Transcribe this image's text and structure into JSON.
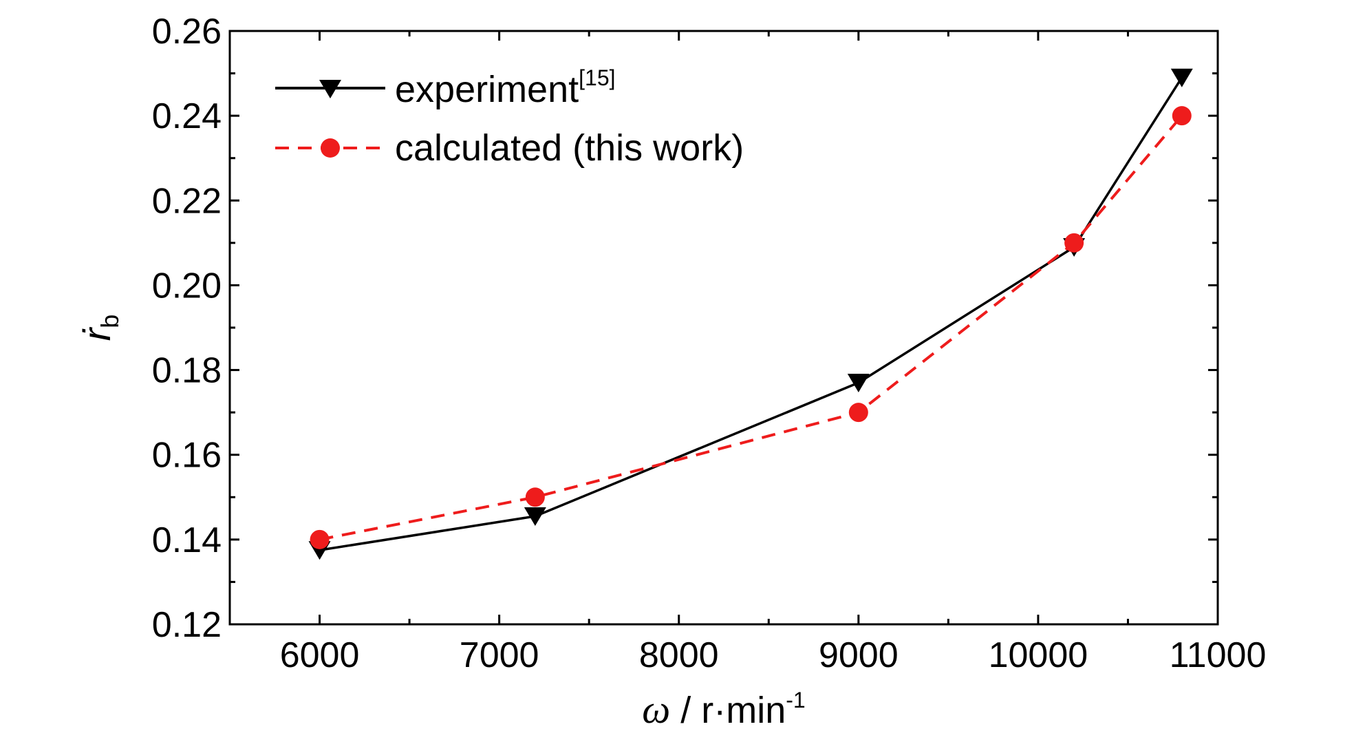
{
  "chart_data": {
    "type": "line",
    "x_label": {
      "symbol": "ω",
      "unit": " / r·min",
      "unit_exp": "-1"
    },
    "y_label": {
      "symbol": "ṙ",
      "subscript": "b"
    },
    "xlim": [
      5500,
      11000
    ],
    "ylim": [
      0.12,
      0.26
    ],
    "x_ticks": [
      6000,
      7000,
      8000,
      9000,
      10000,
      11000
    ],
    "x_tick_labels": [
      "6000",
      "7000",
      "8000",
      "9000",
      "10000",
      "11000"
    ],
    "y_ticks": [
      0.12,
      0.14,
      0.16,
      0.18,
      0.2,
      0.22,
      0.24,
      0.26
    ],
    "y_tick_labels": [
      "0.12",
      "0.14",
      "0.16",
      "0.18",
      "0.20",
      "0.22",
      "0.24",
      "0.26"
    ],
    "grid": false,
    "legend_position": "top-left",
    "series": [
      {
        "key": "experiment",
        "name": "experiment",
        "name_superscript": "[15]",
        "color": "#000000",
        "line_style": "solid",
        "marker": "down-triangle",
        "x": [
          6000,
          7200,
          9000,
          10200,
          10800
        ],
        "y": [
          0.1375,
          0.1455,
          0.177,
          0.209,
          0.249
        ]
      },
      {
        "key": "calculated",
        "name": "calculated (this work)",
        "color": "#ee1c1c",
        "line_style": "dashed",
        "marker": "circle",
        "x": [
          6000,
          7200,
          9000,
          10200,
          10800
        ],
        "y": [
          0.14,
          0.15,
          0.17,
          0.21,
          0.24
        ]
      }
    ]
  }
}
